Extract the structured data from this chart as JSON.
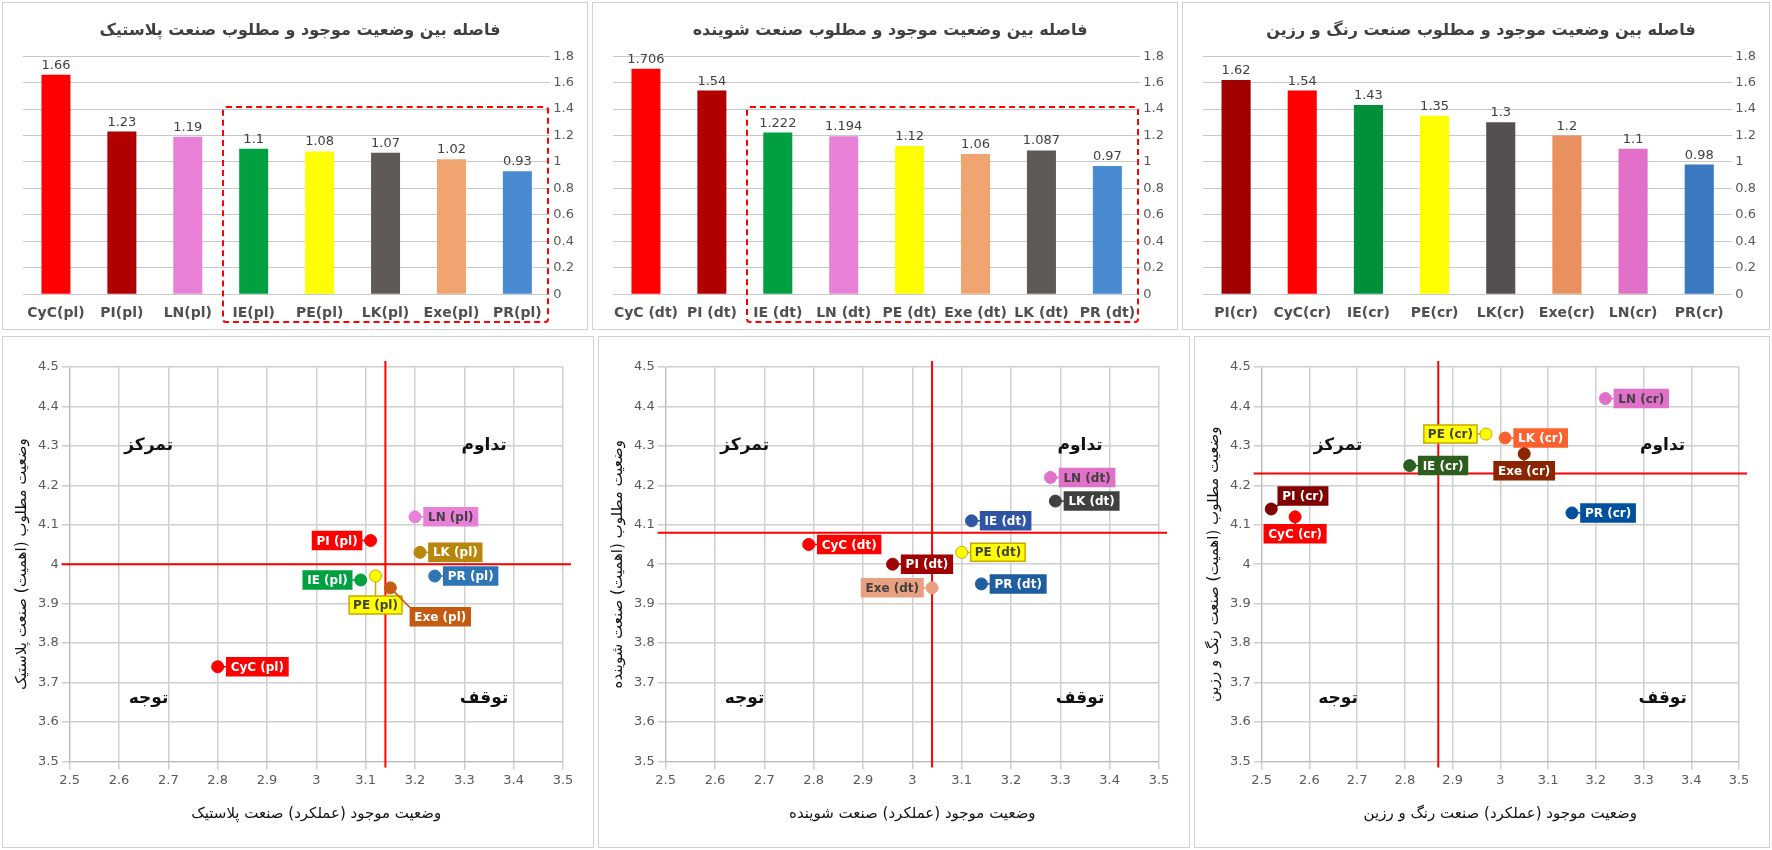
{
  "chart_data": [
    {
      "type": "bar",
      "title": "فاصله بین وضعیت موجود و مطلوب صنعت پلاستیک",
      "categories": [
        "CyC(pl)",
        "PI(pl)",
        "LN(pl)",
        "IE(pl)",
        "PE(pl)",
        "LK(pl)",
        "Exe(pl)",
        "PR(pl)"
      ],
      "values": [
        1.66,
        1.23,
        1.19,
        1.1,
        1.08,
        1.07,
        1.02,
        0.93
      ],
      "colors": [
        "#ff0000",
        "#b00000",
        "#e880d8",
        "#00a040",
        "#ffff00",
        "#5f5a58",
        "#f0a470",
        "#4a8ad0"
      ],
      "ylim": [
        0,
        1.8
      ],
      "yticks": [
        0,
        0.2,
        0.4,
        0.6,
        0.8,
        1,
        1.2,
        1.4,
        1.6,
        1.8
      ],
      "grid": "y",
      "data_labels": true
    },
    {
      "type": "bar",
      "title": "فاصله بین وضعیت موجود و مطلوب صنعت شوینده",
      "categories": [
        "CyC (dt)",
        "PI (dt)",
        "IE (dt)",
        "LN (dt)",
        "PE (dt)",
        "Exe (dt)",
        "LK (dt)",
        "PR (dt)"
      ],
      "values": [
        1.706,
        1.54,
        1.222,
        1.194,
        1.12,
        1.06,
        1.087,
        0.97
      ],
      "colors": [
        "#ff0000",
        "#b00000",
        "#00a040",
        "#e880d8",
        "#ffff00",
        "#f0a470",
        "#5f5a58",
        "#4a8ad0"
      ],
      "ylim": [
        0,
        1.8
      ],
      "yticks": [
        0,
        0.2,
        0.4,
        0.6,
        0.8,
        1,
        1.2,
        1.4,
        1.6,
        1.8
      ],
      "grid": "y",
      "data_labels": true
    },
    {
      "type": "bar",
      "title": "فاصله بین وضعیت موجود و مطلوب صنعت رنگ و رزین",
      "categories": [
        "PI(cr)",
        "CyC(cr)",
        "IE(cr)",
        "PE(cr)",
        "LK(cr)",
        "Exe(cr)",
        "LN(cr)",
        "PR(cr)"
      ],
      "values": [
        1.62,
        1.54,
        1.43,
        1.35,
        1.3,
        1.2,
        1.1,
        0.98
      ],
      "colors": [
        "#a00000",
        "#ff0000",
        "#00903a",
        "#ffff00",
        "#555050",
        "#e89060",
        "#e070c8",
        "#3a78c0"
      ],
      "ylim": [
        0,
        1.8
      ],
      "yticks": [
        0,
        0.2,
        0.4,
        0.6,
        0.8,
        1,
        1.2,
        1.4,
        1.6,
        1.8
      ],
      "grid": "y",
      "data_labels": true
    },
    {
      "type": "scatter",
      "xlabel": "وضعیت موجود (عملکرد) صنعت پلاستیک",
      "ylabel": "وضعیت مطلوب (اهمیت) صنعت پلاستیک",
      "series": [
        {
          "name": "LN (pl)",
          "color": "#e880d8",
          "x": [
            3.2
          ],
          "values": [
            4.12
          ]
        },
        {
          "name": "PI (pl)",
          "color": "#ff0000",
          "x": [
            3.11
          ],
          "values": [
            4.06
          ]
        },
        {
          "name": "LK (pl)",
          "color": "#b8860b",
          "x": [
            3.21
          ],
          "values": [
            4.03
          ]
        },
        {
          "name": "IE (pl)",
          "color": "#00a040",
          "x": [
            3.09
          ],
          "values": [
            3.96
          ]
        },
        {
          "name": "PE (pl)",
          "color": "#ffff00",
          "x": [
            3.12
          ],
          "values": [
            3.97
          ]
        },
        {
          "name": "Exe (pl)",
          "color": "#c55a11",
          "x": [
            3.15
          ],
          "values": [
            3.94
          ]
        },
        {
          "name": "PR (pl)",
          "color": "#2e75b6",
          "x": [
            3.24
          ],
          "values": [
            3.97
          ]
        },
        {
          "name": "CyC (pl)",
          "color": "#ff0000",
          "x": [
            2.8
          ],
          "values": [
            3.74
          ]
        }
      ],
      "xlim": [
        2.5,
        3.5
      ],
      "xticks": [
        2.5,
        2.6,
        2.7,
        2.8,
        2.9,
        3,
        3.1,
        3.2,
        3.3,
        3.4,
        3.5
      ],
      "ylim": [
        3.5,
        4.5
      ],
      "yticks": [
        3.5,
        3.6,
        3.7,
        3.8,
        3.9,
        4,
        4.1,
        4.2,
        4.3,
        4.4,
        4.5
      ],
      "grid": true,
      "marker": "circle",
      "legend": "right",
      "ref_lines": [
        {
          "axis": "x",
          "value": 3.14,
          "color": "#ff0000"
        },
        {
          "axis": "y",
          "value": 4,
          "color": "#ff0000"
        }
      ],
      "annotations": [
        "تمرکز",
        "تداوم",
        "توجه",
        "توقف"
      ]
    },
    {
      "type": "scatter",
      "xlabel": "وضعیت موجود (عملکرد) صنعت شوینده",
      "ylabel": "وضعیت مطلوب (اهمیت) صنعت شوینده",
      "series": [
        {
          "name": "LN (dt)",
          "color": "#e070c8",
          "x": [
            3.28
          ],
          "values": [
            4.22
          ]
        },
        {
          "name": "LK (dt)",
          "color": "#404040",
          "x": [
            3.29
          ],
          "values": [
            4.16
          ]
        },
        {
          "name": "IE (dt)",
          "color": "#2f55a4",
          "x": [
            3.12
          ],
          "values": [
            4.11
          ]
        },
        {
          "name": "CyC (dt)",
          "color": "#ff0000",
          "x": [
            2.79
          ],
          "values": [
            4.05
          ]
        },
        {
          "name": "PI (dt)",
          "color": "#a00000",
          "x": [
            2.96
          ],
          "values": [
            4.0
          ]
        },
        {
          "name": "PE (dt)",
          "color": "#ffff00",
          "x": [
            3.1
          ],
          "values": [
            4.03
          ]
        },
        {
          "name": "PR (dt)",
          "color": "#1f5fa0",
          "x": [
            3.14
          ],
          "values": [
            3.95
          ]
        },
        {
          "name": "Exe (dt)",
          "color": "#e8a080",
          "x": [
            3.04
          ],
          "values": [
            3.94
          ]
        }
      ],
      "xlim": [
        2.5,
        3.5
      ],
      "xticks": [
        2.5,
        2.6,
        2.7,
        2.8,
        2.9,
        3,
        3.1,
        3.2,
        3.3,
        3.4,
        3.5
      ],
      "ylim": [
        3.5,
        4.5
      ],
      "yticks": [
        3.5,
        3.6,
        3.7,
        3.8,
        3.9,
        4,
        4.1,
        4.2,
        4.3,
        4.4,
        4.5
      ],
      "grid": true,
      "marker": "circle",
      "legend": "right",
      "ref_lines": [
        {
          "axis": "x",
          "value": 3.04,
          "color": "#ff0000"
        },
        {
          "axis": "y",
          "value": 4.08,
          "color": "#ff0000"
        }
      ],
      "annotations": [
        "تمرکز",
        "تداوم",
        "توجه",
        "توقف"
      ]
    },
    {
      "type": "scatter",
      "xlabel": "وضعیت موجود (عملکرد) صنعت رنگ و رزین",
      "ylabel": "وضعیت مطلوب (اهمیت) صنعت رنگ و رزین",
      "series": [
        {
          "name": "LN (cr)",
          "color": "#e070c8",
          "x": [
            3.22
          ],
          "values": [
            4.42
          ]
        },
        {
          "name": "PE (cr)",
          "color": "#ffff00",
          "x": [
            2.97
          ],
          "values": [
            4.33
          ]
        },
        {
          "name": "LK (cr)",
          "color": "#ff6030",
          "x": [
            3.01
          ],
          "values": [
            4.32
          ]
        },
        {
          "name": "Exe (cr)",
          "color": "#8b2500",
          "x": [
            3.05
          ],
          "values": [
            4.28
          ]
        },
        {
          "name": "IE (cr)",
          "color": "#2e5e1e",
          "x": [
            2.81
          ],
          "values": [
            4.25
          ]
        },
        {
          "name": "PI (cr)",
          "color": "#800000",
          "x": [
            2.52
          ],
          "values": [
            4.14
          ]
        },
        {
          "name": "CyC (cr)",
          "color": "#ff0000",
          "x": [
            2.57
          ],
          "values": [
            4.12
          ]
        },
        {
          "name": "PR (cr)",
          "color": "#0050a0",
          "x": [
            3.15
          ],
          "values": [
            4.13
          ]
        }
      ],
      "xlim": [
        2.5,
        3.5
      ],
      "xticks": [
        2.5,
        2.6,
        2.7,
        2.8,
        2.9,
        3,
        3.1,
        3.2,
        3.3,
        3.4,
        3.5
      ],
      "ylim": [
        3.5,
        4.5
      ],
      "yticks": [
        3.5,
        3.6,
        3.7,
        3.8,
        3.9,
        4,
        4.1,
        4.2,
        4.3,
        4.4,
        4.5
      ],
      "grid": true,
      "marker": "circle",
      "legend": "top right",
      "ref_lines": [
        {
          "axis": "x",
          "value": 2.87,
          "color": "#ff0000"
        },
        {
          "axis": "y",
          "value": 4.23,
          "color": "#ff0000"
        }
      ],
      "annotations": [
        "تمرکز",
        "تداوم",
        "توجه",
        "توقف"
      ]
    }
  ]
}
